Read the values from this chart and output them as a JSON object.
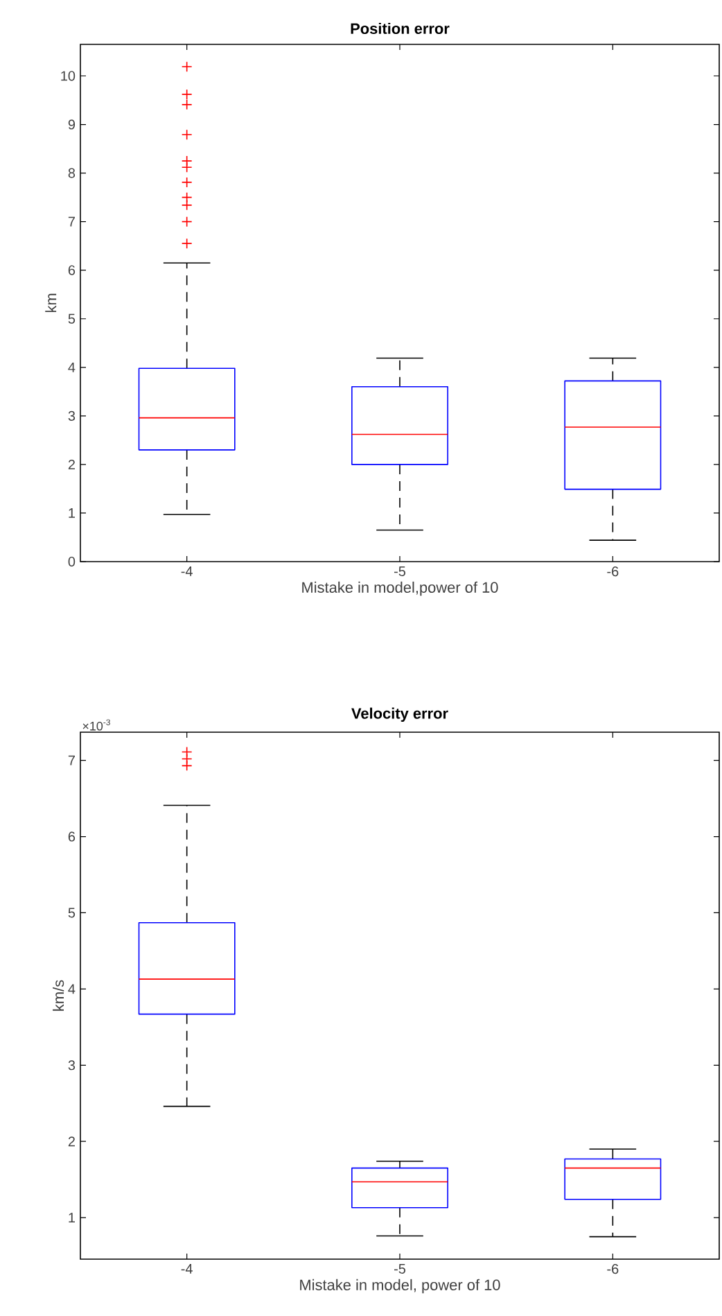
{
  "chart_data": [
    {
      "type": "box",
      "title": "Position error",
      "xlabel": "Mistake in model,power of 10",
      "ylabel": "km",
      "categories": [
        "-4",
        "-5",
        "-6"
      ],
      "ylim": [
        0,
        10.65
      ],
      "yticks": [
        0,
        1,
        2,
        3,
        4,
        5,
        6,
        7,
        8,
        9,
        10
      ],
      "marker": "cross",
      "series": [
        {
          "color": "#0000ff",
          "boxes": [
            {
              "low": 0.97,
              "q1": 2.3,
              "median": 2.96,
              "q3": 3.98,
              "high": 6.15,
              "outliers": [
                10.19,
                9.62,
                9.41,
                8.79,
                8.25,
                8.12,
                7.81,
                7.5,
                7.34,
                7.0,
                6.55
              ]
            },
            {
              "low": 0.65,
              "q1": 2.0,
              "median": 2.62,
              "q3": 3.6,
              "high": 4.19
            },
            {
              "low": 0.44,
              "q1": 1.49,
              "median": 2.77,
              "q3": 3.72,
              "high": 4.19
            }
          ]
        }
      ]
    },
    {
      "type": "box",
      "title": "Velocity error",
      "xlabel": "Mistake in model, power of 10",
      "ylabel": "km/s",
      "categories": [
        "-4",
        "-5",
        "-6"
      ],
      "ylim": [
        0.455,
        7.37
      ],
      "yticks": [
        1,
        2,
        3,
        4,
        5,
        6,
        7
      ],
      "marker": "cross",
      "annotations": [
        "×10$^{-3}$"
      ],
      "series": [
        {
          "color": "#0000ff",
          "boxes": [
            {
              "low": 2.46,
              "q1": 3.67,
              "median": 4.13,
              "q3": 4.87,
              "high": 6.41,
              "outliers": [
                7.11,
                7.02,
                6.93
              ]
            },
            {
              "low": 0.76,
              "q1": 1.13,
              "median": 1.47,
              "q3": 1.65,
              "high": 1.74
            },
            {
              "low": 0.75,
              "q1": 1.24,
              "median": 1.65,
              "q3": 1.77,
              "high": 1.9
            }
          ]
        }
      ]
    }
  ]
}
